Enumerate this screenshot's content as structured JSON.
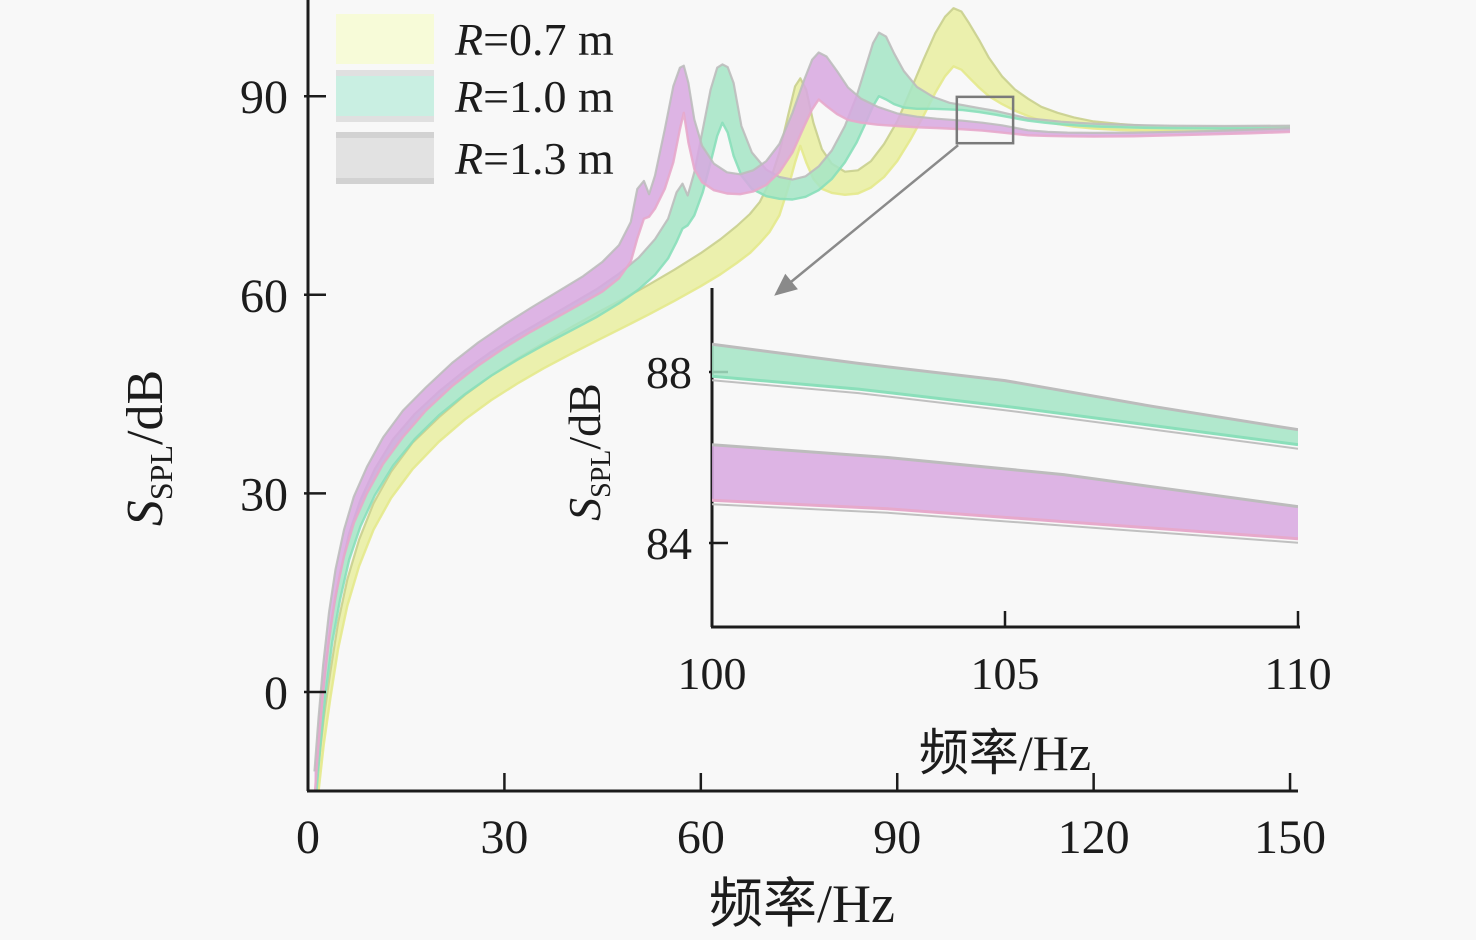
{
  "figure": {
    "background": "#f8f8f8",
    "axis_color": "#1c1c1c",
    "annotation_color": "#8a8a8a"
  },
  "legend": {
    "items": [
      {
        "label": "R=0.7 m",
        "label_var": "R",
        "label_rest": "=0.7 m",
        "swatch_fill": "#f7fbd8",
        "swatch_edge": "none"
      },
      {
        "label": "R=1.0 m",
        "label_var": "R",
        "label_rest": "=1.0 m",
        "swatch_fill": "#c9efe2",
        "swatch_edge": "#e0e0e0"
      },
      {
        "label": "R=1.3 m",
        "label_var": "R",
        "label_rest": "=1.3 m",
        "swatch_fill": "#e2e2e2",
        "swatch_edge": "#d2d2d2"
      }
    ]
  },
  "chart_data": {
    "type": "area",
    "title": "",
    "xlabel": "频率/Hz",
    "ylabel": "S_SPL/dB",
    "ylabel_parts": {
      "var": "S",
      "sub": "SPL",
      "rest": "/dB"
    },
    "main_axes": {
      "xlim": [
        0,
        150
      ],
      "xticks": [
        0,
        30,
        60,
        90,
        120,
        150
      ],
      "ylim": [
        -15,
        103
      ],
      "yticks": [
        0,
        30,
        60,
        90
      ],
      "grid": false,
      "legend_position": "upper-left"
    },
    "inset": {
      "xlim": [
        100,
        110
      ],
      "xticks": [
        100,
        105,
        110
      ],
      "ylim": [
        82,
        90
      ],
      "yticks": [
        84,
        88
      ],
      "xlabel": "频率/Hz",
      "ylabel": "S_SPL/dB",
      "ylabel_parts": {
        "var": "S",
        "sub": "SPL",
        "rest": "/dB"
      },
      "series_shown": [
        "R=1.0 m",
        "R=1.3 m"
      ]
    },
    "zoom_rect": {
      "x": [
        99.1,
        107.7
      ],
      "y": [
        82.9,
        89.9
      ]
    },
    "zoom_arrow": {
      "from": [
        99.3,
        82.6
      ],
      "to": [
        71.5,
        60.1
      ]
    },
    "series": [
      {
        "name": "R=0.7 m",
        "id": "r-0-7",
        "fill": "#e9efa0",
        "edge_top": "#c9cf8e",
        "edge_bottom": "#e4e98c",
        "in_inset": false,
        "band": [
          [
            1.5,
            -16,
            -12
          ],
          [
            2.4,
            -8,
            -4
          ],
          [
            3.4,
            -1,
            3
          ],
          [
            4.6,
            6.5,
            10.5
          ],
          [
            6,
            13,
            17
          ],
          [
            7.8,
            19,
            23
          ],
          [
            10,
            24.5,
            28.5
          ],
          [
            12.7,
            29.3,
            33.3
          ],
          [
            16,
            33.7,
            37.7
          ],
          [
            20,
            37.8,
            41.5
          ],
          [
            24,
            41.2,
            44.9
          ],
          [
            28,
            44.1,
            47.8
          ],
          [
            32,
            46.6,
            50.4
          ],
          [
            36,
            48.9,
            52.7
          ],
          [
            40,
            51,
            55
          ],
          [
            44,
            53,
            57.2
          ],
          [
            48,
            55,
            59.3
          ],
          [
            52,
            57,
            61.5
          ],
          [
            56,
            59.1,
            63.8
          ],
          [
            60,
            61.3,
            66.3
          ],
          [
            63,
            63.1,
            68.4
          ],
          [
            65.5,
            64.8,
            70.4
          ],
          [
            67.5,
            66.3,
            72.2
          ],
          [
            69,
            67.8,
            74
          ],
          [
            70.5,
            69.5,
            77
          ],
          [
            72,
            72,
            81.5
          ],
          [
            73.3,
            76,
            87
          ],
          [
            74.4,
            80,
            91.5
          ],
          [
            75.2,
            82.5,
            92.7
          ],
          [
            76.1,
            80,
            91
          ],
          [
            77.2,
            77.5,
            86
          ],
          [
            78.5,
            76,
            82
          ],
          [
            80,
            75.4,
            79.8
          ],
          [
            82,
            75.1,
            78.6
          ],
          [
            84,
            75.3,
            78.8
          ],
          [
            86,
            76.2,
            80.2
          ],
          [
            88,
            77.8,
            82.8
          ],
          [
            90,
            80.2,
            86.2
          ],
          [
            92,
            83.4,
            90.8
          ],
          [
            94,
            87,
            95.5
          ],
          [
            95.8,
            90.5,
            99.5
          ],
          [
            97.3,
            93,
            102
          ],
          [
            98.6,
            94.5,
            103.3
          ],
          [
            99.8,
            94,
            102.8
          ],
          [
            101,
            92.8,
            101
          ],
          [
            102.5,
            91.3,
            98.5
          ],
          [
            104,
            90,
            95.8
          ],
          [
            106,
            88.8,
            93
          ],
          [
            108,
            87.8,
            91
          ],
          [
            110,
            87,
            89.6
          ],
          [
            112,
            86.3,
            88.4
          ],
          [
            114.5,
            85.8,
            87.5
          ],
          [
            117,
            85.4,
            86.8
          ],
          [
            120,
            85.1,
            86.2
          ],
          [
            124,
            84.9,
            85.8
          ],
          [
            128,
            84.8,
            85.5
          ],
          [
            134,
            84.7,
            85.3
          ],
          [
            142,
            84.7,
            85.25
          ],
          [
            150,
            84.8,
            85.4
          ]
        ]
      },
      {
        "name": "R=1.0 m",
        "id": "r-1-0",
        "fill": "#a5e5c6",
        "edge_top": "#bcbcbc",
        "edge_bottom": "#8adfba",
        "in_inset": true,
        "band": [
          [
            1.2,
            -16,
            -12
          ],
          [
            1.9,
            -8,
            -4
          ],
          [
            2.7,
            0,
            4
          ],
          [
            3.7,
            7.5,
            11.5
          ],
          [
            4.9,
            14,
            18
          ],
          [
            6.3,
            20,
            24
          ],
          [
            8,
            25,
            29
          ],
          [
            10.2,
            29.7,
            33.7
          ],
          [
            13,
            34.2,
            38.2
          ],
          [
            16.3,
            38.2,
            42
          ],
          [
            20,
            41.8,
            45.4
          ],
          [
            24,
            45,
            48.6
          ],
          [
            28,
            47.8,
            51.4
          ],
          [
            32,
            50.2,
            53.9
          ],
          [
            36,
            52.4,
            56.2
          ],
          [
            40,
            54.5,
            58.5
          ],
          [
            44,
            56.6,
            60.8
          ],
          [
            47.5,
            58.7,
            63.2
          ],
          [
            50.5,
            60.8,
            65.6
          ],
          [
            53,
            63,
            68.4
          ],
          [
            55,
            65.5,
            71.5
          ],
          [
            56.3,
            68,
            75.5
          ],
          [
            57.2,
            70,
            76.8
          ],
          [
            58,
            70.5,
            75
          ],
          [
            59,
            72,
            78.5
          ],
          [
            60.3,
            75.5,
            85
          ],
          [
            61.5,
            80,
            91
          ],
          [
            62.5,
            84,
            94.3
          ],
          [
            63.3,
            86,
            94.8
          ],
          [
            64.1,
            84.5,
            94.4
          ],
          [
            65,
            81,
            92
          ],
          [
            66.2,
            78,
            85.5
          ],
          [
            67.8,
            76,
            81.5
          ],
          [
            70,
            74.9,
            78.9
          ],
          [
            72,
            74.5,
            77.8
          ],
          [
            74,
            74.4,
            77.4
          ],
          [
            76,
            74.8,
            77.9
          ],
          [
            78,
            75.8,
            79.4
          ],
          [
            80,
            77.5,
            81.8
          ],
          [
            82,
            80,
            85.5
          ],
          [
            83.8,
            83,
            90
          ],
          [
            85.2,
            86,
            94.5
          ],
          [
            86.3,
            88.5,
            98
          ],
          [
            87.2,
            90,
            99.6
          ],
          [
            88.3,
            89.5,
            99
          ],
          [
            89.5,
            88.8,
            96.5
          ],
          [
            91,
            88.3,
            93.8
          ],
          [
            93,
            88.1,
            91.4
          ],
          [
            95.5,
            88.1,
            89.9
          ],
          [
            98,
            88,
            89
          ],
          [
            100,
            87.9,
            88.65
          ],
          [
            102.5,
            87.6,
            88.2
          ],
          [
            105,
            87.2,
            87.8
          ],
          [
            107.5,
            86.75,
            87.2
          ],
          [
            110,
            86.3,
            86.65
          ],
          [
            112.5,
            86,
            86.4
          ],
          [
            115,
            85.75,
            86.15
          ],
          [
            118,
            85.55,
            85.95
          ],
          [
            121,
            85.4,
            85.8
          ],
          [
            126,
            85.25,
            85.65
          ],
          [
            132,
            85.15,
            85.55
          ],
          [
            140,
            85.1,
            85.5
          ],
          [
            150,
            85.1,
            85.55
          ]
        ]
      },
      {
        "name": "R=1.3 m",
        "id": "r-1-3",
        "fill": "#d8a8e0",
        "edge_top": "#bcbcbc",
        "edge_bottom": "#e7a9cb",
        "in_inset": true,
        "band": [
          [
            1,
            -16,
            -12
          ],
          [
            1.6,
            -8,
            -4
          ],
          [
            2.3,
            0,
            4
          ],
          [
            3.2,
            8,
            12
          ],
          [
            4.2,
            14.5,
            18.5
          ],
          [
            5.5,
            20.5,
            24.5
          ],
          [
            7,
            25.5,
            29.5
          ],
          [
            9,
            30,
            34
          ],
          [
            11.5,
            34.5,
            38.5
          ],
          [
            14.5,
            38.5,
            42.5
          ],
          [
            18,
            42.5,
            46
          ],
          [
            22,
            46.2,
            49.7
          ],
          [
            26,
            49.3,
            52.8
          ],
          [
            30,
            52,
            55.5
          ],
          [
            34,
            54.4,
            58
          ],
          [
            38,
            56.6,
            60.4
          ],
          [
            42,
            58.8,
            62.8
          ],
          [
            45,
            60.5,
            65
          ],
          [
            47.5,
            62.5,
            67.5
          ],
          [
            49.3,
            65,
            71
          ],
          [
            50.3,
            68.5,
            76
          ],
          [
            51.3,
            71.5,
            77.2
          ],
          [
            52.1,
            71.8,
            75.2
          ],
          [
            53,
            73,
            78
          ],
          [
            54.5,
            76,
            85
          ],
          [
            55.8,
            80,
            91.5
          ],
          [
            56.8,
            85,
            94.3
          ],
          [
            57.4,
            87.5,
            94.6
          ],
          [
            58.1,
            83,
            92
          ],
          [
            59,
            79,
            86.5
          ],
          [
            60.2,
            77,
            82.5
          ],
          [
            62,
            75.8,
            79.8
          ],
          [
            64,
            75.3,
            78.5
          ],
          [
            66,
            75.2,
            78.2
          ],
          [
            68,
            75.6,
            78.8
          ],
          [
            70,
            76.6,
            80.2
          ],
          [
            72,
            78.5,
            82.8
          ],
          [
            74,
            81.5,
            87.5
          ],
          [
            75.8,
            85.5,
            92.5
          ],
          [
            77,
            88,
            95.5
          ],
          [
            78,
            89.5,
            96.6
          ],
          [
            79.2,
            88.5,
            96
          ],
          [
            80.8,
            87.3,
            93.8
          ],
          [
            82.5,
            86.4,
            91.3
          ],
          [
            84.5,
            86,
            89.6
          ],
          [
            87,
            85.7,
            88.4
          ],
          [
            90,
            85.5,
            87.4
          ],
          [
            93,
            85.3,
            86.9
          ],
          [
            96,
            85.2,
            86.6
          ],
          [
            100,
            85,
            86.3
          ],
          [
            103,
            84.8,
            86
          ],
          [
            106,
            84.5,
            85.6
          ],
          [
            110,
            84.1,
            84.85
          ],
          [
            113,
            84,
            84.6
          ],
          [
            116,
            83.95,
            84.5
          ],
          [
            120,
            83.9,
            84.45
          ],
          [
            126,
            83.95,
            84.5
          ],
          [
            132,
            84.1,
            84.6
          ],
          [
            138,
            84.25,
            84.75
          ],
          [
            144,
            84.4,
            84.95
          ],
          [
            150,
            84.6,
            85.2
          ]
        ]
      }
    ]
  }
}
